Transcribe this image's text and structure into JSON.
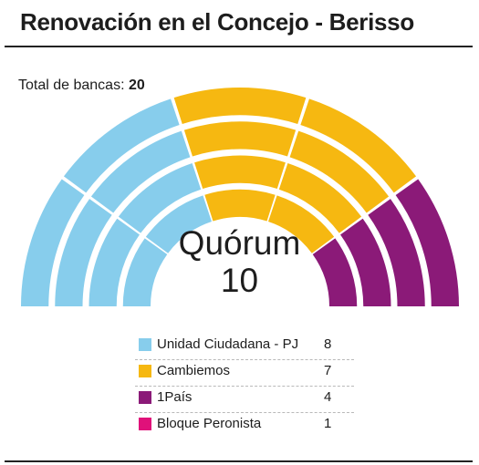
{
  "title": "Renovación en el Concejo - Berisso",
  "total_label": "Total de bancas:",
  "total_value": "20",
  "quorum_label": "Quórum",
  "quorum_value": "10",
  "chart_data": {
    "type": "parliament",
    "title": "Renovación en el Concejo - Berisso",
    "total_seats": 20,
    "quorum": 10,
    "rows": 4,
    "categories": [
      "Unidad Ciudadana - PJ",
      "Cambiemos",
      "1País",
      "Bloque Peronista"
    ],
    "values": [
      8,
      7,
      4,
      1
    ],
    "colors": [
      "#87cdec",
      "#f6b811",
      "#8b1a78",
      "#e0117a"
    ],
    "legend_position": "bottom"
  }
}
